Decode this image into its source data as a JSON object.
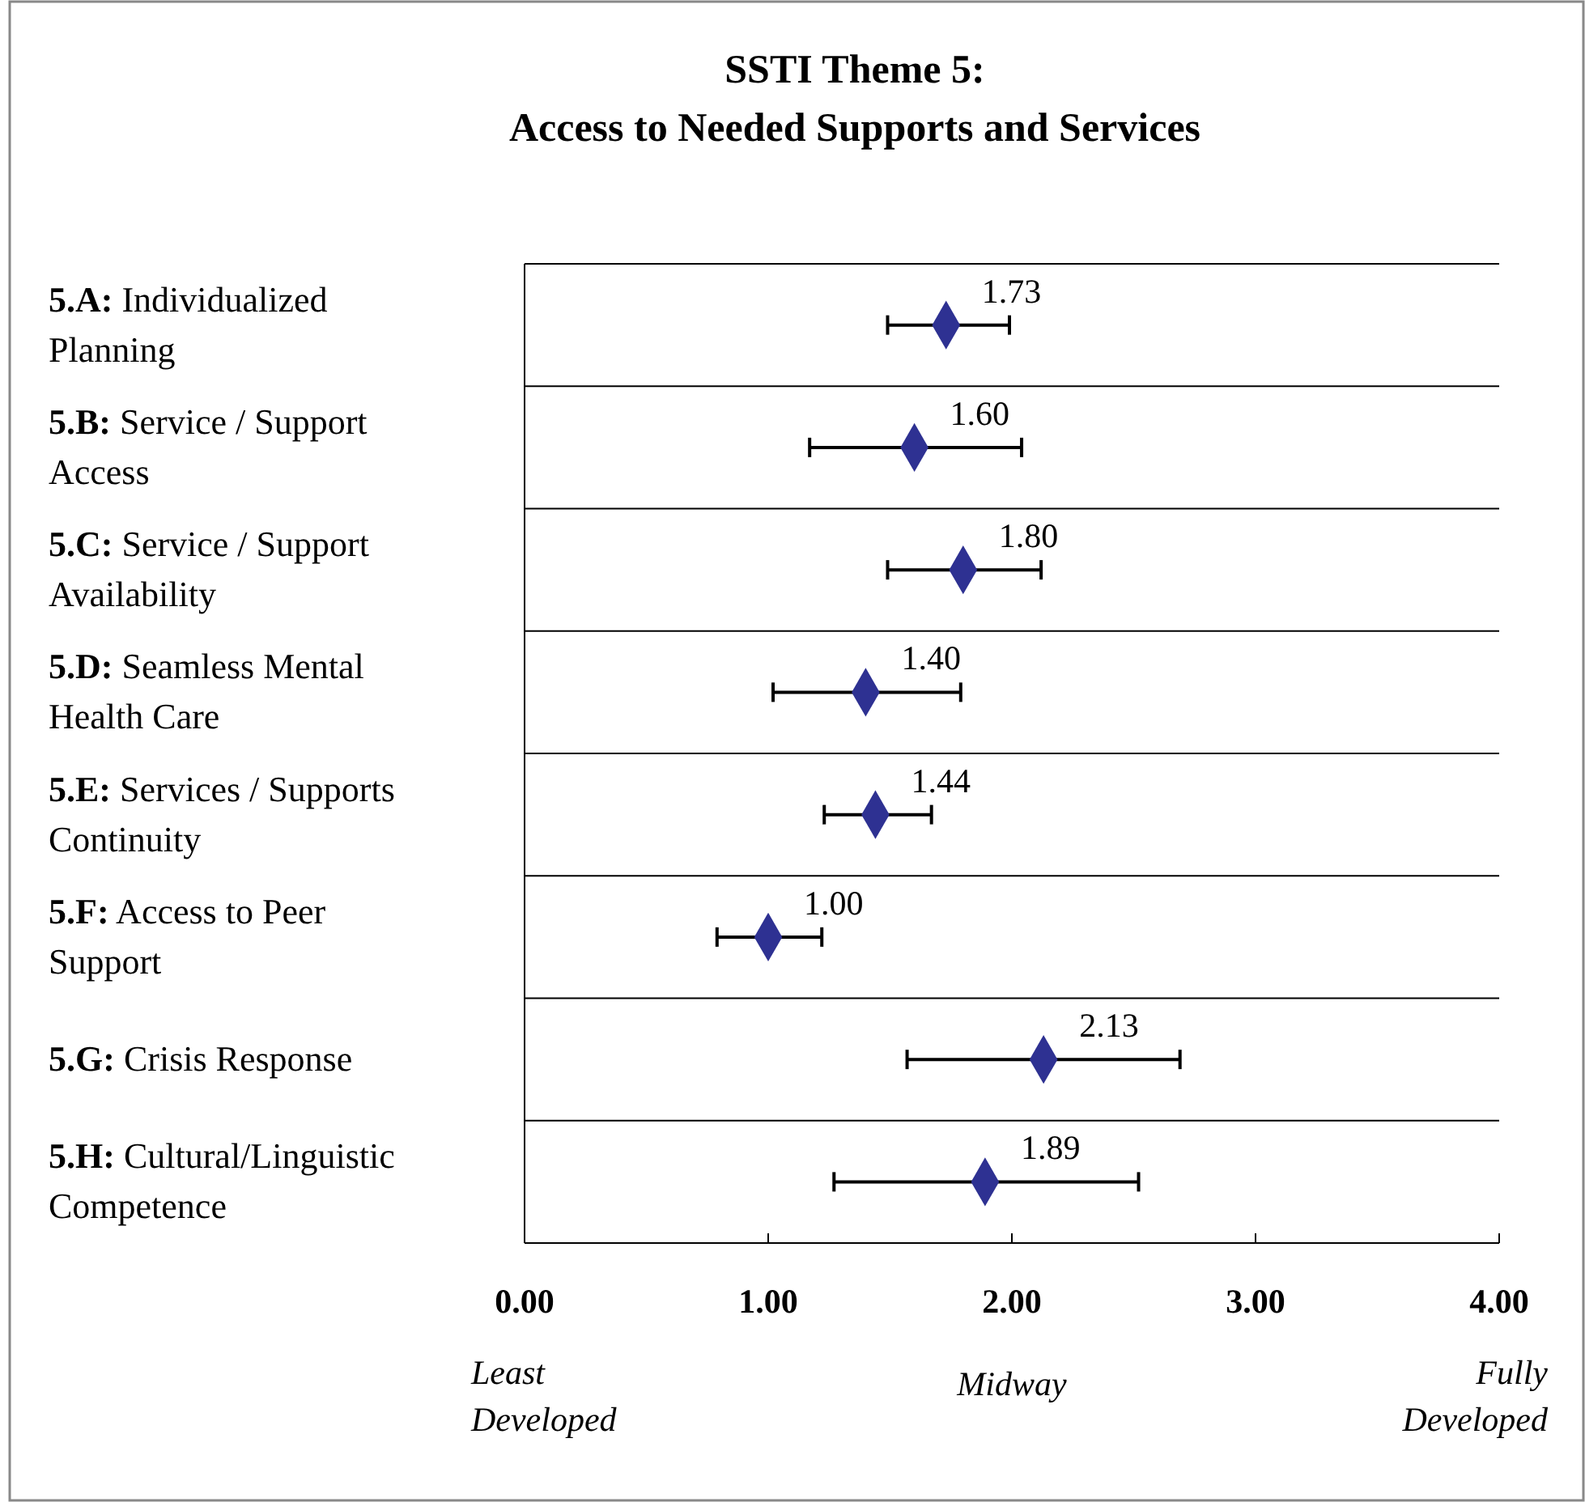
{
  "chart_data": {
    "type": "scatter",
    "orientation": "horizontal",
    "title": "SSTI Theme 5:",
    "subtitle": "Access to Needed Supports and Services",
    "categories": [
      "5.A: Individualized Planning",
      "5.B: Service / Support Access",
      "5.C: Service / Support Availability",
      "5.D: Seamless Mental Health Care",
      "5.E: Services / Supports Continuity",
      "5.F: Access to Peer Support",
      "5.G: Crisis Response",
      "5.H: Cultural/Linguistic Competence"
    ],
    "values": [
      1.73,
      1.6,
      1.8,
      1.4,
      1.44,
      1.0,
      2.13,
      1.89
    ],
    "value_labels": [
      "1.73",
      "1.60",
      "1.80",
      "1.40",
      "1.44",
      "1.00",
      "2.13",
      "1.89"
    ],
    "errors": [
      [
        1.49,
        1.99
      ],
      [
        1.17,
        2.04
      ],
      [
        1.49,
        2.12
      ],
      [
        1.02,
        1.79
      ],
      [
        1.23,
        1.67
      ],
      [
        0.79,
        1.22
      ],
      [
        1.57,
        2.69
      ],
      [
        1.27,
        2.52
      ]
    ],
    "color": "#2e3192",
    "marker": "diamond",
    "grid": "y",
    "xlim": [
      0,
      4
    ],
    "xticks": [
      {
        "value": 0,
        "label": "0.00"
      },
      {
        "value": 1,
        "label": "1.00"
      },
      {
        "value": 2,
        "label": "2.00"
      },
      {
        "value": 3,
        "label": "3.00"
      },
      {
        "value": 4,
        "label": "4.00"
      }
    ],
    "annotations": [
      "Least Developed",
      "Midway",
      "Fully Developed"
    ]
  }
}
